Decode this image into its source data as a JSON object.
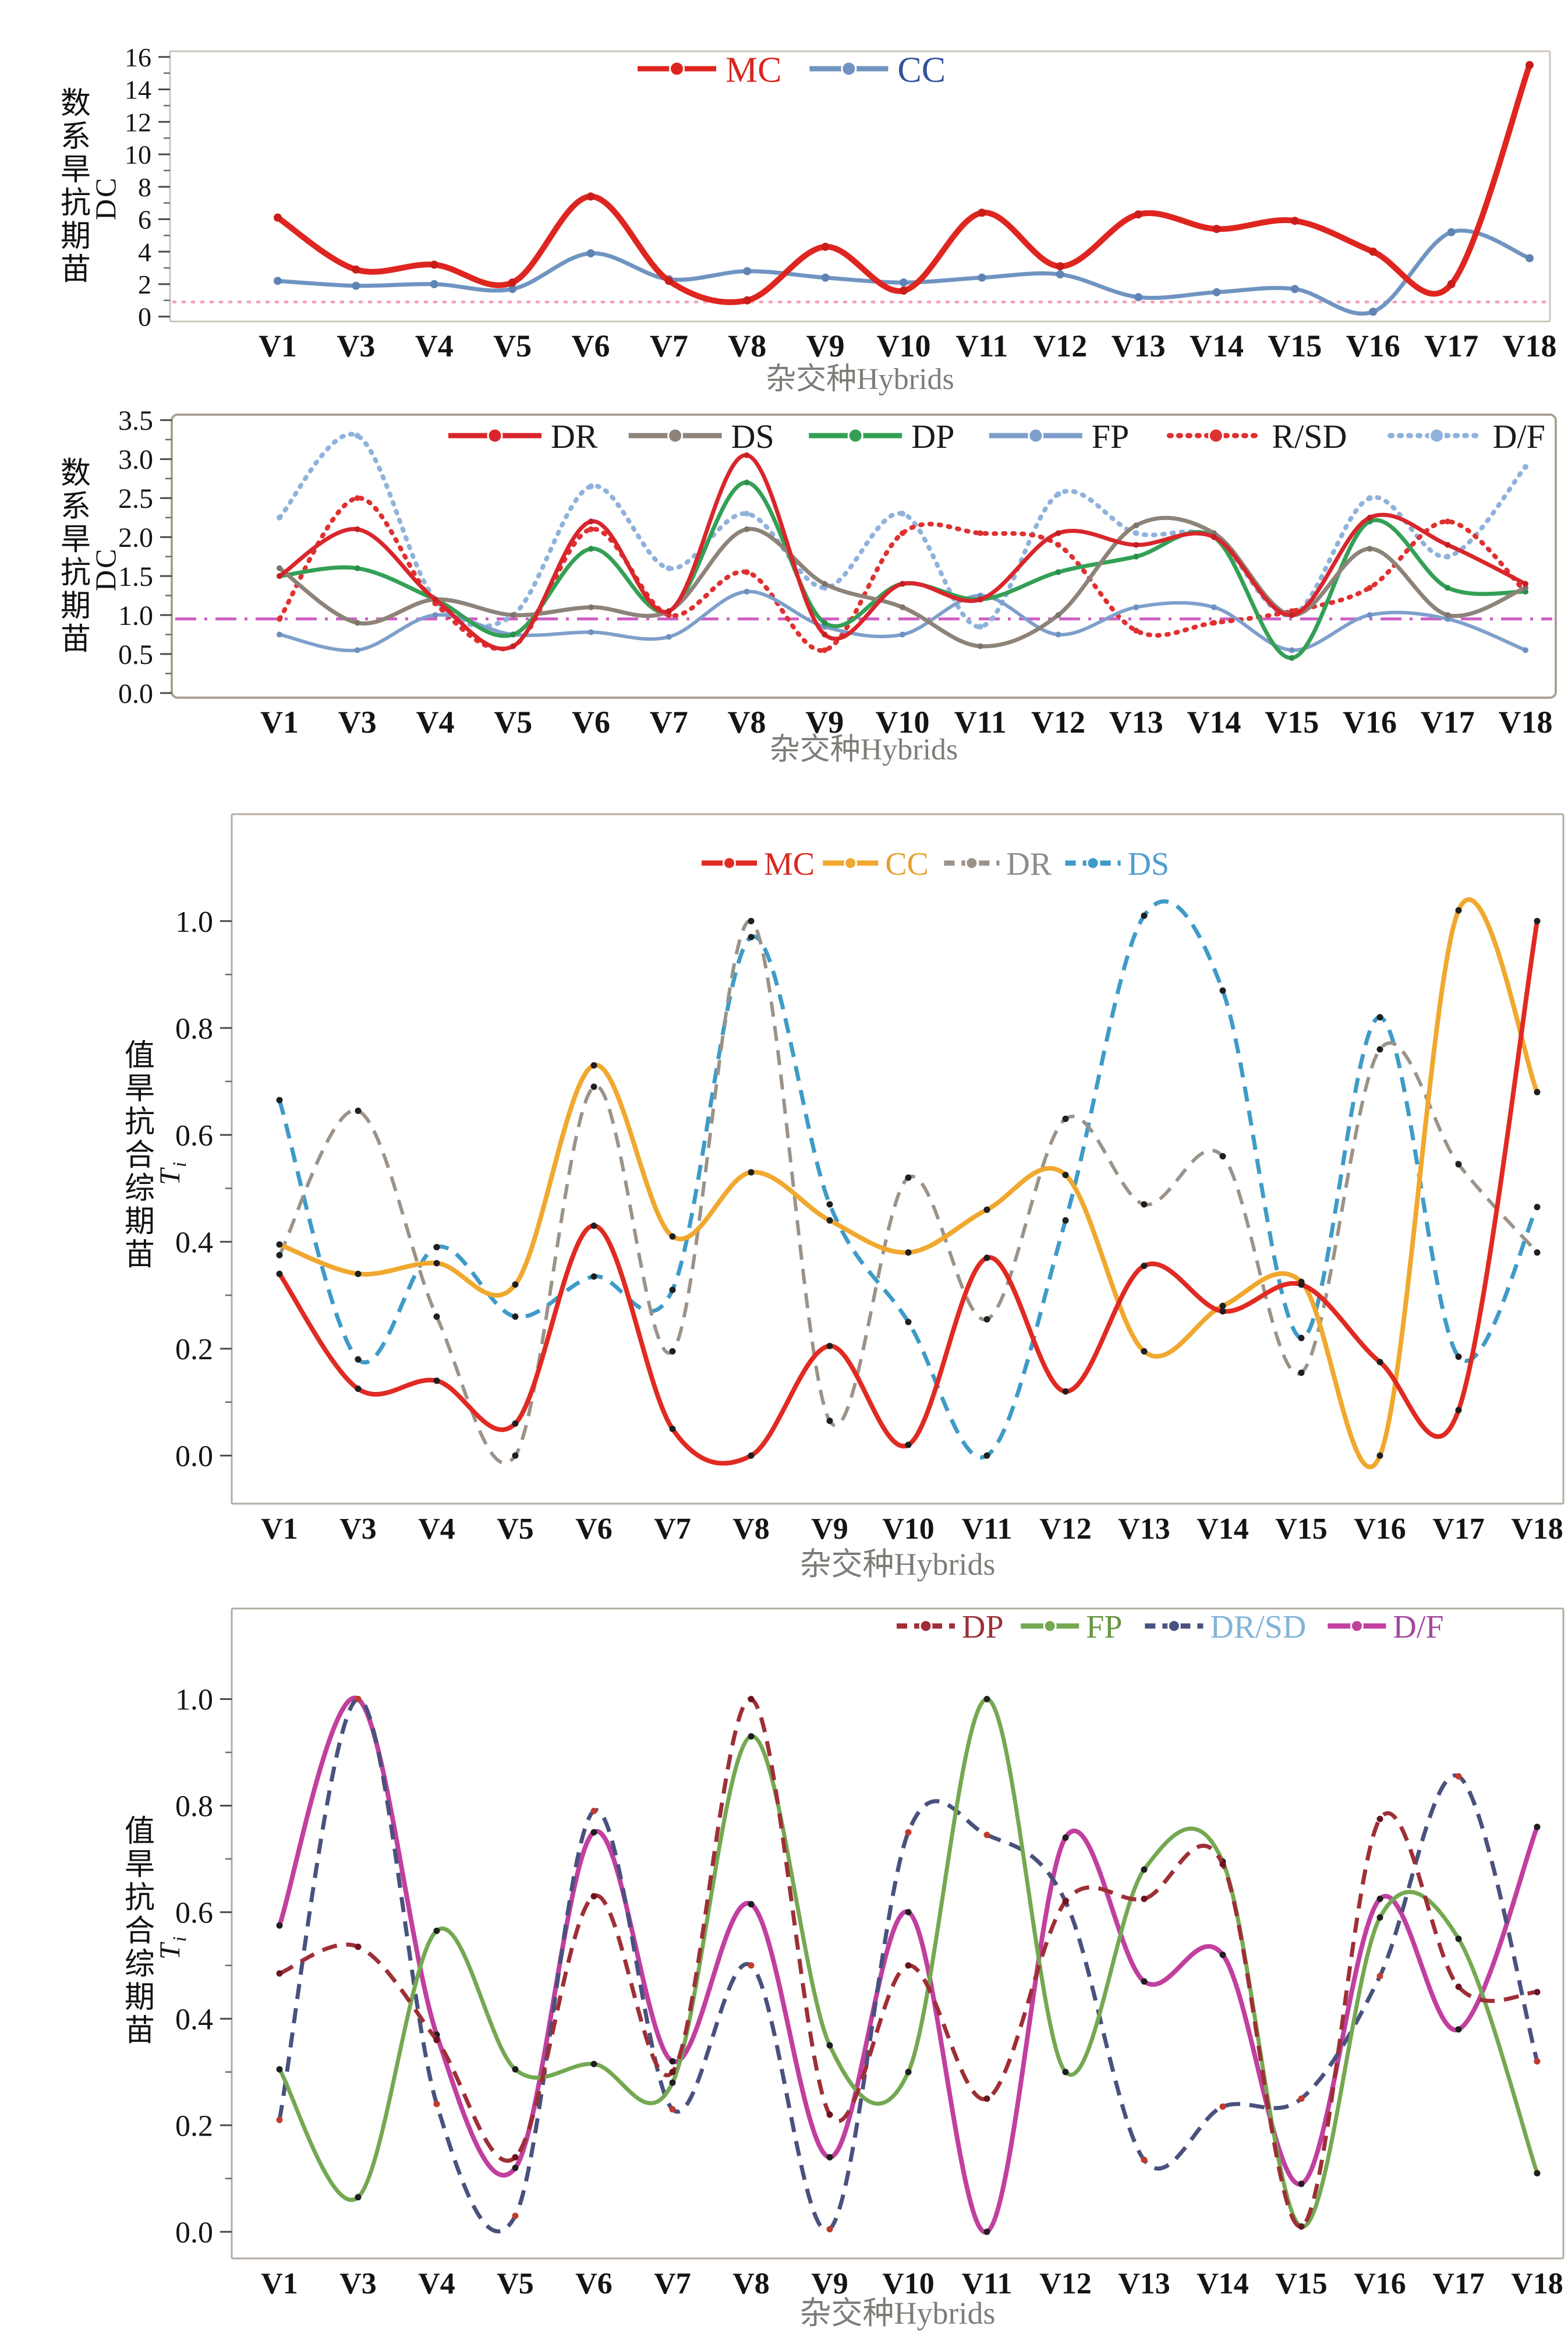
{
  "figure": {
    "x_axis_title": "杂交种Hybrids",
    "background_color": "#ffffff"
  },
  "chart_data": [
    {
      "type": "line",
      "title": "",
      "ylabel_cn": "苗期抗旱系数",
      "ylabel_sym": "DC",
      "ylabel_sub": "",
      "ylabel_sym_italic": false,
      "xlabel": "杂交种Hybrids",
      "grid": false,
      "legend_position": "top-center",
      "categories": [
        "V1",
        "V3",
        "V4",
        "V5",
        "V6",
        "V7",
        "V8",
        "V9",
        "V10",
        "V11",
        "V12",
        "V13",
        "V14",
        "V15",
        "V16",
        "V17",
        "V18"
      ],
      "ylim": [
        -0.3,
        16.35
      ],
      "yticks": [
        0,
        2,
        4,
        6,
        8,
        10,
        12,
        14,
        16
      ],
      "ytick_labels": [
        "0",
        "2",
        "4",
        "6",
        "8",
        "10",
        "12",
        "14",
        "16"
      ],
      "ref_line": {
        "y": 0.9,
        "color": "#f2a6bc",
        "style": "dotted"
      },
      "series": [
        {
          "name": "MC",
          "color": "#df2520",
          "label_color": "#d9261f",
          "marker": "#c81d18",
          "style": "solid",
          "values": [
            6.1,
            2.9,
            3.2,
            2.1,
            7.4,
            2.2,
            1.0,
            4.3,
            1.6,
            6.4,
            3.1,
            6.3,
            5.4,
            5.9,
            4.0,
            2.0,
            15.5
          ]
        },
        {
          "name": "CC",
          "color": "#7094c1",
          "label_color": "#33519c",
          "marker": "#5f83b5",
          "style": "solid",
          "values": [
            2.2,
            1.9,
            2.0,
            1.7,
            3.9,
            2.3,
            2.8,
            2.4,
            2.1,
            2.4,
            2.6,
            1.2,
            1.5,
            1.7,
            0.3,
            5.2,
            3.6
          ]
        }
      ]
    },
    {
      "type": "line",
      "title": "",
      "ylabel_cn": "苗期抗旱系数",
      "ylabel_sym": "DC",
      "ylabel_sub": "",
      "ylabel_sym_italic": false,
      "xlabel": "杂交种Hybrids",
      "grid": false,
      "legend_position": "top",
      "categories": [
        "V1",
        "V3",
        "V4",
        "V5",
        "V6",
        "V7",
        "V8",
        "V9",
        "V10",
        "V11",
        "V12",
        "V13",
        "V14",
        "V15",
        "V16",
        "V17",
        "V18"
      ],
      "ylim": [
        -0.06,
        3.57
      ],
      "yticks": [
        0,
        0.5,
        1.0,
        1.5,
        2.0,
        2.5,
        3.0,
        3.5
      ],
      "ytick_labels": [
        "0.0",
        "0.5",
        "1.0",
        "1.5",
        "2.0",
        "2.5",
        "3.0",
        "3.5"
      ],
      "ref_line": {
        "y": 0.95,
        "color": "#cf5ec5",
        "style": "dashdot"
      },
      "series": [
        {
          "name": "DR",
          "color": "#d8262c",
          "label_color": "#1a1a1a",
          "marker": "#c51f25",
          "style": "solid",
          "values": [
            1.5,
            2.1,
            1.2,
            0.6,
            2.2,
            1.05,
            3.05,
            0.75,
            1.4,
            1.2,
            2.05,
            1.9,
            2.0,
            1.0,
            2.25,
            1.9,
            1.4
          ]
        },
        {
          "name": "DS",
          "color": "#8d8379",
          "label_color": "#1a1a1a",
          "marker": "#7d746b",
          "style": "solid",
          "values": [
            1.6,
            0.9,
            1.2,
            1.0,
            1.1,
            1.05,
            2.1,
            1.4,
            1.1,
            0.6,
            1.0,
            2.15,
            2.05,
            1.0,
            1.85,
            1.0,
            1.35
          ]
        },
        {
          "name": "DP",
          "color": "#33a055",
          "label_color": "#1a1a1a",
          "marker": "#2b8f4a",
          "style": "solid",
          "values": [
            1.5,
            1.6,
            1.2,
            0.75,
            1.85,
            1.05,
            2.7,
            0.9,
            1.4,
            1.2,
            1.55,
            1.75,
            2.0,
            0.45,
            2.2,
            1.35,
            1.3
          ]
        },
        {
          "name": "FP",
          "color": "#7e9fcb",
          "label_color": "#1a1a1a",
          "marker": "#6d90bf",
          "style": "solid",
          "values": [
            0.75,
            0.55,
            1.0,
            0.75,
            0.78,
            0.72,
            1.3,
            0.85,
            0.75,
            1.25,
            0.75,
            1.1,
            1.1,
            0.55,
            1.0,
            0.95,
            0.55
          ]
        },
        {
          "name": "R/SD",
          "color": "#e03030",
          "label_color": "#1a1a1a",
          "marker": "#e03030",
          "style": "dotted",
          "values": [
            0.95,
            2.5,
            1.15,
            0.6,
            2.1,
            1.0,
            1.55,
            0.55,
            2.05,
            2.05,
            1.9,
            0.8,
            0.9,
            1.05,
            1.35,
            2.2,
            1.3
          ]
        },
        {
          "name": "D/F",
          "color": "#8fb2dc",
          "label_color": "#1a1a1a",
          "marker": "#8fb2dc",
          "style": "dotted",
          "values": [
            2.25,
            3.3,
            1.2,
            1.0,
            2.65,
            1.6,
            2.3,
            1.35,
            2.3,
            0.85,
            2.55,
            2.05,
            2.0,
            1.0,
            2.5,
            1.75,
            2.9
          ]
        }
      ]
    },
    {
      "type": "line",
      "title": "",
      "ylabel_cn": "苗期综合抗旱值",
      "ylabel_sym": "T",
      "ylabel_sub": "i",
      "ylabel_sym_italic": true,
      "xlabel": "杂交种Hybrids",
      "grid": false,
      "legend_position": "top-center",
      "categories": [
        "V1",
        "V3",
        "V4",
        "V5",
        "V6",
        "V7",
        "V8",
        "V9",
        "V10",
        "V11",
        "V12",
        "V13",
        "V14",
        "V15",
        "V16",
        "V17",
        "V18"
      ],
      "ylim": [
        -0.09,
        1.2
      ],
      "yticks": [
        0,
        0.2,
        0.4,
        0.6,
        0.8,
        1.0
      ],
      "ytick_labels": [
        "0.0",
        "0.2",
        "0.4",
        "0.6",
        "0.8",
        "1.0"
      ],
      "ref_line": null,
      "series": [
        {
          "name": "MC",
          "color": "#e02a22",
          "label_color": "#d9261f",
          "marker": "#1f1f1f",
          "style": "solid",
          "values": [
            0.34,
            0.125,
            0.14,
            0.06,
            0.43,
            0.05,
            0.0,
            0.205,
            0.02,
            0.37,
            0.12,
            0.355,
            0.27,
            0.32,
            0.175,
            0.085,
            1.0
          ]
        },
        {
          "name": "CC",
          "color": "#f0a82e",
          "label_color": "#e8a030",
          "marker": "#1f1f1f",
          "style": "solid",
          "values": [
            0.395,
            0.34,
            0.36,
            0.32,
            0.73,
            0.41,
            0.53,
            0.44,
            0.38,
            0.46,
            0.525,
            0.195,
            0.28,
            0.325,
            0.0,
            1.02,
            0.68
          ]
        },
        {
          "name": "DR",
          "color": "#9b9289",
          "label_color": "#8c8c8c",
          "marker": "#1f1f1f",
          "style": "dashed",
          "values": [
            0.375,
            0.645,
            0.26,
            0.0,
            0.69,
            0.195,
            1.0,
            0.065,
            0.52,
            0.255,
            0.63,
            0.47,
            0.56,
            0.155,
            0.76,
            0.545,
            0.38
          ]
        },
        {
          "name": "DS",
          "color": "#3e9bc8",
          "label_color": "#4d9fd0",
          "marker": "#1f1f1f",
          "style": "dashed",
          "values": [
            0.665,
            0.18,
            0.39,
            0.26,
            0.335,
            0.31,
            0.97,
            0.47,
            0.25,
            0.0,
            0.44,
            1.01,
            0.87,
            0.22,
            0.82,
            0.185,
            0.465
          ]
        }
      ]
    },
    {
      "type": "line",
      "title": "",
      "ylabel_cn": "苗期综合抗旱值",
      "ylabel_sym": "T",
      "ylabel_sub": "i",
      "ylabel_sym_italic": true,
      "xlabel": "杂交种Hybrids",
      "grid": false,
      "legend_position": "top-right",
      "categories": [
        "V1",
        "V3",
        "V4",
        "V5",
        "V6",
        "V7",
        "V8",
        "V9",
        "V10",
        "V11",
        "V12",
        "V13",
        "V14",
        "V15",
        "V16",
        "V17",
        "V18"
      ],
      "ylim": [
        -0.05,
        1.17
      ],
      "yticks": [
        0,
        0.2,
        0.4,
        0.6,
        0.8,
        1.0
      ],
      "ytick_labels": [
        "0.0",
        "0.2",
        "0.4",
        "0.6",
        "0.8",
        "1.0"
      ],
      "ref_line": null,
      "series": [
        {
          "name": "DP",
          "color": "#9e2f36",
          "label_color": "#9c3038",
          "marker": "#6b1420",
          "style": "dashed",
          "values": [
            0.485,
            0.535,
            0.36,
            0.14,
            0.63,
            0.3,
            1.0,
            0.22,
            0.5,
            0.25,
            0.62,
            0.625,
            0.69,
            0.01,
            0.775,
            0.46,
            0.45
          ]
        },
        {
          "name": "FP",
          "color": "#74a851",
          "label_color": "#66953f",
          "marker": "#1f1f1f",
          "style": "solid",
          "values": [
            0.305,
            0.065,
            0.565,
            0.305,
            0.315,
            0.28,
            0.93,
            0.35,
            0.3,
            1.0,
            0.3,
            0.68,
            0.695,
            0.01,
            0.59,
            0.55,
            0.11
          ]
        },
        {
          "name": "DR/SD",
          "color": "#49517e",
          "label_color": "#82b4d8",
          "marker": "#c23b2e",
          "style": "dashed",
          "values": [
            0.21,
            1.0,
            0.24,
            0.03,
            0.79,
            0.23,
            0.5,
            0.005,
            0.75,
            0.745,
            0.62,
            0.135,
            0.235,
            0.25,
            0.48,
            0.855,
            0.32
          ]
        },
        {
          "name": "D/F",
          "color": "#c13f9e",
          "label_color": "#a3489e",
          "marker": "#1f1f1f",
          "style": "solid",
          "values": [
            0.575,
            1.0,
            0.37,
            0.12,
            0.75,
            0.32,
            0.615,
            0.14,
            0.6,
            0.0,
            0.74,
            0.47,
            0.52,
            0.09,
            0.625,
            0.38,
            0.76
          ]
        }
      ]
    }
  ]
}
